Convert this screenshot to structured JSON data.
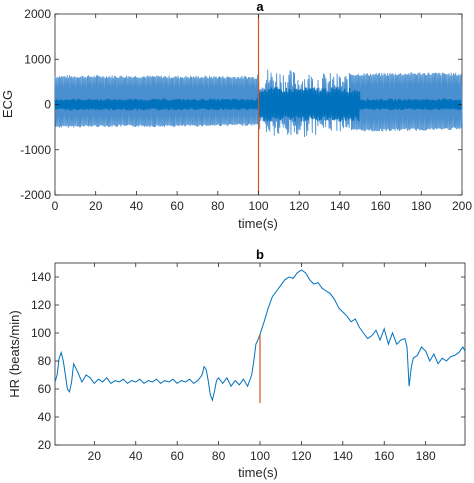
{
  "chart_data": [
    {
      "type": "line",
      "title": "a",
      "xlabel": "time(s)",
      "ylabel": "ECG",
      "xlim": [
        0,
        200
      ],
      "ylim": [
        -2000,
        2000
      ],
      "xticks": [
        0,
        20,
        40,
        60,
        80,
        100,
        120,
        140,
        160,
        180,
        200
      ],
      "yticks": [
        -2000,
        -1000,
        0,
        1000,
        2000
      ],
      "marker_x": 100,
      "colors": {
        "series": "#0072bd",
        "marker": "#d95319"
      },
      "series": [
        {
          "description": "dense ECG trace: peaks ~+600, troughs ~-500 before 100 s; amplitude up to ~+850 / -800 around 100-130 s, then ~+700 / -600",
          "x": [
            0,
            20,
            40,
            60,
            80,
            99,
            101,
            110,
            120,
            130,
            140,
            160,
            180,
            200
          ],
          "upper": [
            650,
            650,
            650,
            640,
            640,
            630,
            850,
            800,
            750,
            720,
            700,
            700,
            720,
            700
          ],
          "lower": [
            -520,
            -500,
            -500,
            -500,
            -480,
            -470,
            -650,
            -800,
            -750,
            -650,
            -600,
            -600,
            -580,
            -560
          ]
        }
      ]
    },
    {
      "type": "line",
      "title": "b",
      "xlabel": "time(s)",
      "ylabel": "HR (beats/min)",
      "xlim": [
        1,
        199
      ],
      "ylim": [
        20,
        150
      ],
      "xticks": [
        20,
        40,
        60,
        80,
        100,
        120,
        140,
        160,
        180
      ],
      "yticks": [
        20,
        40,
        60,
        80,
        100,
        120,
        140
      ],
      "marker_x": 100,
      "marker_y": [
        50,
        99
      ],
      "colors": {
        "series": "#0072bd",
        "marker": "#d95319"
      },
      "series": [
        {
          "x": [
            1,
            2,
            3,
            4,
            5,
            6,
            7,
            8,
            9,
            10,
            12,
            14,
            16,
            18,
            20,
            22,
            24,
            26,
            28,
            30,
            32,
            34,
            36,
            38,
            40,
            42,
            44,
            46,
            48,
            50,
            52,
            54,
            56,
            58,
            60,
            62,
            64,
            66,
            68,
            70,
            72,
            73,
            74,
            75,
            76,
            77,
            78,
            79,
            80,
            82,
            84,
            86,
            88,
            90,
            92,
            94,
            96,
            97,
            98,
            99,
            100,
            102,
            104,
            106,
            108,
            110,
            112,
            114,
            116,
            118,
            120,
            122,
            124,
            126,
            128,
            130,
            132,
            134,
            136,
            138,
            140,
            142,
            144,
            146,
            148,
            150,
            152,
            154,
            156,
            158,
            160,
            162,
            164,
            166,
            168,
            170,
            171,
            172,
            173,
            174,
            176,
            178,
            180,
            182,
            184,
            186,
            188,
            190,
            192,
            194,
            196,
            198,
            199
          ],
          "y": [
            65,
            70,
            82,
            86,
            80,
            70,
            60,
            58,
            65,
            78,
            72,
            65,
            70,
            68,
            64,
            67,
            65,
            68,
            64,
            66,
            65,
            67,
            64,
            66,
            65,
            67,
            64,
            66,
            65,
            67,
            64,
            66,
            65,
            67,
            64,
            66,
            65,
            67,
            64,
            66,
            70,
            76,
            74,
            66,
            56,
            52,
            58,
            66,
            68,
            64,
            68,
            62,
            66,
            63,
            67,
            62,
            70,
            80,
            92,
            95,
            99,
            108,
            118,
            126,
            130,
            134,
            138,
            140,
            139,
            143,
            145,
            143,
            138,
            135,
            136,
            132,
            130,
            128,
            124,
            118,
            115,
            112,
            108,
            110,
            104,
            100,
            96,
            98,
            102,
            95,
            103,
            92,
            100,
            92,
            95,
            96,
            90,
            62,
            75,
            82,
            84,
            90,
            87,
            80,
            85,
            78,
            82,
            80,
            83,
            84,
            86,
            90,
            87
          ]
        }
      ]
    }
  ]
}
